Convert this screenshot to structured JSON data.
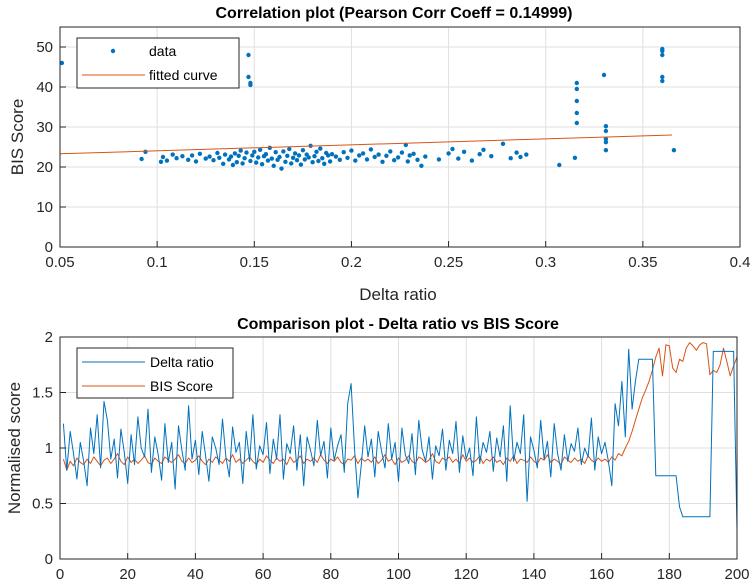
{
  "chart_data": [
    {
      "type": "scatter",
      "title": "Correlation plot (Pearson Corr Coeff = 0.14999)",
      "xlabel": "Delta ratio",
      "ylabel": "BIS Score",
      "xlim": [
        0.05,
        0.4
      ],
      "ylim": [
        0,
        55
      ],
      "xticks": [
        "0.05",
        "0.1",
        "0.15",
        "0.2",
        "0.25",
        "0.3",
        "0.35",
        "0.4"
      ],
      "xtick_values": [
        0.05,
        0.1,
        0.15,
        0.2,
        0.25,
        0.3,
        0.35,
        0.4
      ],
      "yticks": [
        "0",
        "10",
        "20",
        "30",
        "40",
        "50"
      ],
      "ytick_values": [
        0,
        10,
        20,
        30,
        40,
        50
      ],
      "grid": true,
      "legend_position": "top-left",
      "series": [
        {
          "name": "data",
          "kind": "scatter",
          "color": "#0072BD",
          "points": [
            [
              0.051,
              46
            ],
            [
              0.092,
              22
            ],
            [
              0.094,
              23.8
            ],
            [
              0.102,
              21.3
            ],
            [
              0.103,
              22.5
            ],
            [
              0.105,
              21.6
            ],
            [
              0.108,
              23.1
            ],
            [
              0.11,
              22.2
            ],
            [
              0.113,
              22.7
            ],
            [
              0.116,
              21.8
            ],
            [
              0.118,
              22.9
            ],
            [
              0.12,
              21.4
            ],
            [
              0.122,
              23.3
            ],
            [
              0.125,
              22.1
            ],
            [
              0.127,
              22.6
            ],
            [
              0.129,
              21.7
            ],
            [
              0.131,
              23.5
            ],
            [
              0.132,
              22.3
            ],
            [
              0.134,
              20.8
            ],
            [
              0.135,
              23.1
            ],
            [
              0.137,
              21.9
            ],
            [
              0.138,
              22.6
            ],
            [
              0.139,
              20.5
            ],
            [
              0.14,
              23.4
            ],
            [
              0.141,
              21.2
            ],
            [
              0.142,
              22.8
            ],
            [
              0.143,
              24.1
            ],
            [
              0.144,
              20.9
            ],
            [
              0.145,
              22.2
            ],
            [
              0.146,
              23.6
            ],
            [
              0.147,
              48
            ],
            [
              0.147,
              42.5
            ],
            [
              0.148,
              41
            ],
            [
              0.148,
              40.5
            ],
            [
              0.148,
              21.5
            ],
            [
              0.149,
              22.9
            ],
            [
              0.15,
              23.8
            ],
            [
              0.151,
              21.1
            ],
            [
              0.152,
              22.4
            ],
            [
              0.153,
              24.3
            ],
            [
              0.154,
              20.7
            ],
            [
              0.155,
              22.7
            ],
            [
              0.156,
              23.2
            ],
            [
              0.157,
              21.6
            ],
            [
              0.158,
              24.8
            ],
            [
              0.159,
              22.1
            ],
            [
              0.16,
              20.3
            ],
            [
              0.161,
              23.7
            ],
            [
              0.162,
              21.8
            ],
            [
              0.163,
              22.5
            ],
            [
              0.164,
              19.6
            ],
            [
              0.165,
              23.9
            ],
            [
              0.166,
              21.3
            ],
            [
              0.167,
              22.8
            ],
            [
              0.168,
              24.5
            ],
            [
              0.169,
              20.9
            ],
            [
              0.17,
              22.3
            ],
            [
              0.171,
              23.4
            ],
            [
              0.172,
              21.7
            ],
            [
              0.173,
              22.9
            ],
            [
              0.174,
              20.6
            ],
            [
              0.175,
              24.2
            ],
            [
              0.176,
              21.9
            ],
            [
              0.177,
              23.1
            ],
            [
              0.178,
              22.4
            ],
            [
              0.179,
              25.3
            ],
            [
              0.18,
              21.2
            ],
            [
              0.181,
              22.7
            ],
            [
              0.182,
              23.8
            ],
            [
              0.183,
              21.5
            ],
            [
              0.184,
              24.6
            ],
            [
              0.185,
              22.2
            ],
            [
              0.186,
              20.8
            ],
            [
              0.187,
              23.5
            ],
            [
              0.188,
              22.9
            ],
            [
              0.189,
              21.4
            ],
            [
              0.19,
              23.2
            ],
            [
              0.192,
              22.6
            ],
            [
              0.194,
              21.8
            ],
            [
              0.196,
              23.7
            ],
            [
              0.198,
              22.3
            ],
            [
              0.2,
              24.1
            ],
            [
              0.202,
              21.6
            ],
            [
              0.204,
              22.9
            ],
            [
              0.206,
              23.4
            ],
            [
              0.208,
              21.9
            ],
            [
              0.21,
              24.4
            ],
            [
              0.212,
              22.5
            ],
            [
              0.214,
              23.1
            ],
            [
              0.216,
              21.3
            ],
            [
              0.218,
              22.8
            ],
            [
              0.22,
              23.9
            ],
            [
              0.222,
              21.7
            ],
            [
              0.224,
              22.4
            ],
            [
              0.226,
              23.6
            ],
            [
              0.228,
              25.5
            ],
            [
              0.229,
              21.4
            ],
            [
              0.23,
              22.9
            ],
            [
              0.232,
              23.3
            ],
            [
              0.234,
              21.8
            ],
            [
              0.236,
              20.3
            ],
            [
              0.238,
              22.6
            ],
            [
              0.245,
              21.9
            ],
            [
              0.25,
              23.4
            ],
            [
              0.252,
              24.5
            ],
            [
              0.255,
              22.1
            ],
            [
              0.258,
              23.8
            ],
            [
              0.262,
              21.6
            ],
            [
              0.266,
              23.2
            ],
            [
              0.268,
              24.3
            ],
            [
              0.272,
              22.7
            ],
            [
              0.278,
              25.8
            ],
            [
              0.282,
              22.2
            ],
            [
              0.285,
              23.6
            ],
            [
              0.287,
              22.5
            ],
            [
              0.29,
              23.1
            ],
            [
              0.307,
              20.5
            ],
            [
              0.315,
              22.3
            ],
            [
              0.316,
              41
            ],
            [
              0.316,
              39.5
            ],
            [
              0.316,
              36.5
            ],
            [
              0.316,
              33.5
            ],
            [
              0.316,
              31
            ],
            [
              0.33,
              43
            ],
            [
              0.331,
              30.2
            ],
            [
              0.331,
              29
            ],
            [
              0.331,
              27
            ],
            [
              0.331,
              26.2
            ],
            [
              0.331,
              24.2
            ],
            [
              0.36,
              49.5
            ],
            [
              0.36,
              49
            ],
            [
              0.36,
              48
            ],
            [
              0.36,
              42.5
            ],
            [
              0.36,
              41.5
            ],
            [
              0.366,
              24.2
            ]
          ]
        },
        {
          "name": "fitted curve",
          "kind": "line",
          "color": "#D95319",
          "points": [
            [
              0.05,
              23.3
            ],
            [
              0.365,
              28
            ]
          ]
        }
      ]
    },
    {
      "type": "line",
      "title": "Comparison plot - Delta ratio vs BIS Score",
      "xlabel": "",
      "ylabel": "Normalised score",
      "xlim": [
        0,
        200
      ],
      "ylim": [
        0,
        2
      ],
      "xticks": [
        "0",
        "20",
        "40",
        "60",
        "80",
        "100",
        "120",
        "140",
        "160",
        "180",
        "200"
      ],
      "xtick_values": [
        0,
        20,
        40,
        60,
        80,
        100,
        120,
        140,
        160,
        180,
        200
      ],
      "yticks": [
        "0",
        "0.5",
        "1",
        "1.5",
        "2"
      ],
      "ytick_values": [
        0,
        0.5,
        1,
        1.5,
        2
      ],
      "grid": true,
      "legend_position": "top-left",
      "series": [
        {
          "name": "Delta ratio",
          "color": "#0072BD",
          "x_start": 1,
          "values": [
            1.22,
            0.8,
            1.15,
            0.95,
            0.72,
            1.05,
            0.88,
            0.66,
            1.18,
            0.95,
            1.3,
            0.82,
            1.42,
            1.25,
            0.9,
            1.08,
            0.73,
            1.17,
            0.96,
            0.68,
            1.12,
            0.85,
            1.28,
            1.0,
            0.92,
            1.35,
            0.78,
            1.1,
            0.94,
            0.71,
            1.22,
            0.87,
            1.05,
            0.63,
            1.2,
            0.98,
            0.8,
            1.38,
            0.9,
            1.07,
            0.76,
            1.15,
            0.93,
            0.7,
            1.1,
            1.0,
            0.85,
            1.26,
            0.92,
            0.74,
            1.19,
            0.96,
            1.05,
            0.68,
            1.15,
            0.88,
            1.3,
            0.81,
            1.02,
            0.94,
            1.23,
            0.77,
            1.08,
            0.9,
            1.3,
            0.72,
            1.04,
            0.95,
            1.2,
            0.8,
            1.12,
            0.66,
            1.1,
            0.98,
            0.84,
            1.25,
            0.93,
            1.06,
            0.73,
            1.18,
            0.89,
            1.02,
            1.12,
            0.78,
            1.4,
            1.58,
            1.0,
            0.55,
            0.85,
            1.2,
            0.92,
            1.08,
            0.74,
            1.15,
            0.97,
            0.82,
            1.22,
            0.9,
            1.05,
            0.7,
            1.18,
            0.94,
            0.86,
            1.13,
            0.76,
            1.25,
            0.98,
            0.88,
            1.1,
            0.72,
            1.02,
            0.93,
            1.17,
            0.8,
            1.07,
            0.95,
            1.24,
            0.78,
            1.11,
            0.9,
            1.0,
            0.75,
            1.28,
            0.86,
            1.05,
            0.96,
            1.15,
            0.79,
            1.09,
            0.92,
            1.2,
            0.7,
            1.38,
            0.88,
            1.05,
            0.95,
            1.3,
            0.52,
            1.1,
            0.98,
            0.82,
            1.25,
            0.9,
            1.06,
            0.74,
            1.22,
            0.95,
            0.8,
            1.12,
            0.88,
            1.04,
            0.97,
            1.18,
            0.85,
            1.0,
            0.92,
            1.27,
            0.8,
            1.1,
            0.95,
            1.05,
            0.88,
            0.66,
            1.4,
            1.2,
            1.6,
            1.1,
            1.89,
            1.35,
            1.6,
            1.8,
            1.8,
            1.8,
            1.8,
            1.8,
            0.75,
            0.75,
            0.75,
            0.75,
            0.75,
            0.75,
            0.75,
            0.47,
            0.38,
            0.38,
            0.38,
            0.38,
            0.38,
            0.38,
            0.38,
            0.38,
            0.38,
            1.87,
            1.87,
            1.87,
            1.87,
            1.87,
            1.87,
            1.87,
            0.26
          ]
        },
        {
          "name": "BIS Score",
          "color": "#D95319",
          "x_start": 1,
          "values": [
            0.9,
            0.8,
            0.88,
            0.84,
            0.91,
            0.87,
            0.85,
            0.9,
            0.86,
            0.92,
            0.88,
            0.84,
            0.89,
            0.91,
            0.86,
            0.9,
            0.95,
            0.88,
            0.85,
            0.92,
            0.87,
            0.9,
            0.86,
            0.89,
            0.93,
            0.87,
            0.85,
            0.91,
            0.88,
            0.86,
            0.92,
            0.89,
            0.87,
            0.9,
            0.94,
            0.88,
            0.86,
            0.91,
            0.87,
            0.89,
            0.93,
            0.88,
            0.85,
            0.9,
            0.87,
            0.92,
            0.89,
            0.86,
            0.91,
            0.88,
            0.94,
            0.87,
            0.9,
            0.86,
            0.89,
            0.92,
            0.88,
            0.85,
            0.9,
            0.87,
            0.93,
            0.89,
            0.86,
            0.91,
            0.88,
            0.9,
            0.85,
            0.92,
            0.87,
            0.89,
            0.93,
            0.86,
            0.9,
            0.88,
            0.91,
            0.87,
            0.94,
            0.89,
            0.86,
            0.9,
            0.88,
            0.92,
            0.87,
            0.85,
            0.9,
            0.89,
            0.93,
            0.86,
            0.91,
            0.88,
            0.9,
            0.87,
            0.92,
            0.86,
            0.89,
            0.94,
            0.88,
            0.9,
            0.85,
            0.91,
            0.87,
            0.89,
            0.93,
            0.88,
            0.86,
            0.92,
            0.9,
            0.87,
            0.89,
            0.95,
            0.88,
            0.86,
            0.91,
            0.89,
            0.92,
            0.87,
            0.9,
            0.86,
            0.94,
            0.88,
            0.91,
            0.87,
            0.89,
            0.93,
            0.86,
            0.9,
            0.88,
            0.92,
            0.87,
            0.89,
            0.85,
            0.91,
            0.88,
            0.93,
            0.86,
            0.9,
            0.89,
            0.87,
            0.92,
            0.88,
            0.86,
            0.91,
            0.89,
            0.94,
            0.87,
            0.9,
            0.88,
            0.85,
            0.92,
            0.89,
            0.87,
            0.91,
            0.88,
            0.9,
            0.86,
            0.93,
            0.89,
            0.87,
            0.91,
            0.88,
            0.9,
            0.87,
            0.92,
            0.89,
            0.95,
            0.93,
            1.0,
            1.06,
            1.15,
            1.25,
            1.35,
            1.45,
            1.52,
            1.6,
            1.7,
            1.82,
            1.9,
            1.65,
            1.93,
            1.92,
            1.72,
            1.68,
            1.8,
            1.78,
            1.9,
            1.95,
            1.92,
            1.88,
            1.93,
            1.95,
            1.94,
            1.66,
            1.7,
            1.68,
            1.75,
            1.9,
            1.78,
            1.65,
            1.74,
            1.82
          ]
        }
      ]
    }
  ]
}
